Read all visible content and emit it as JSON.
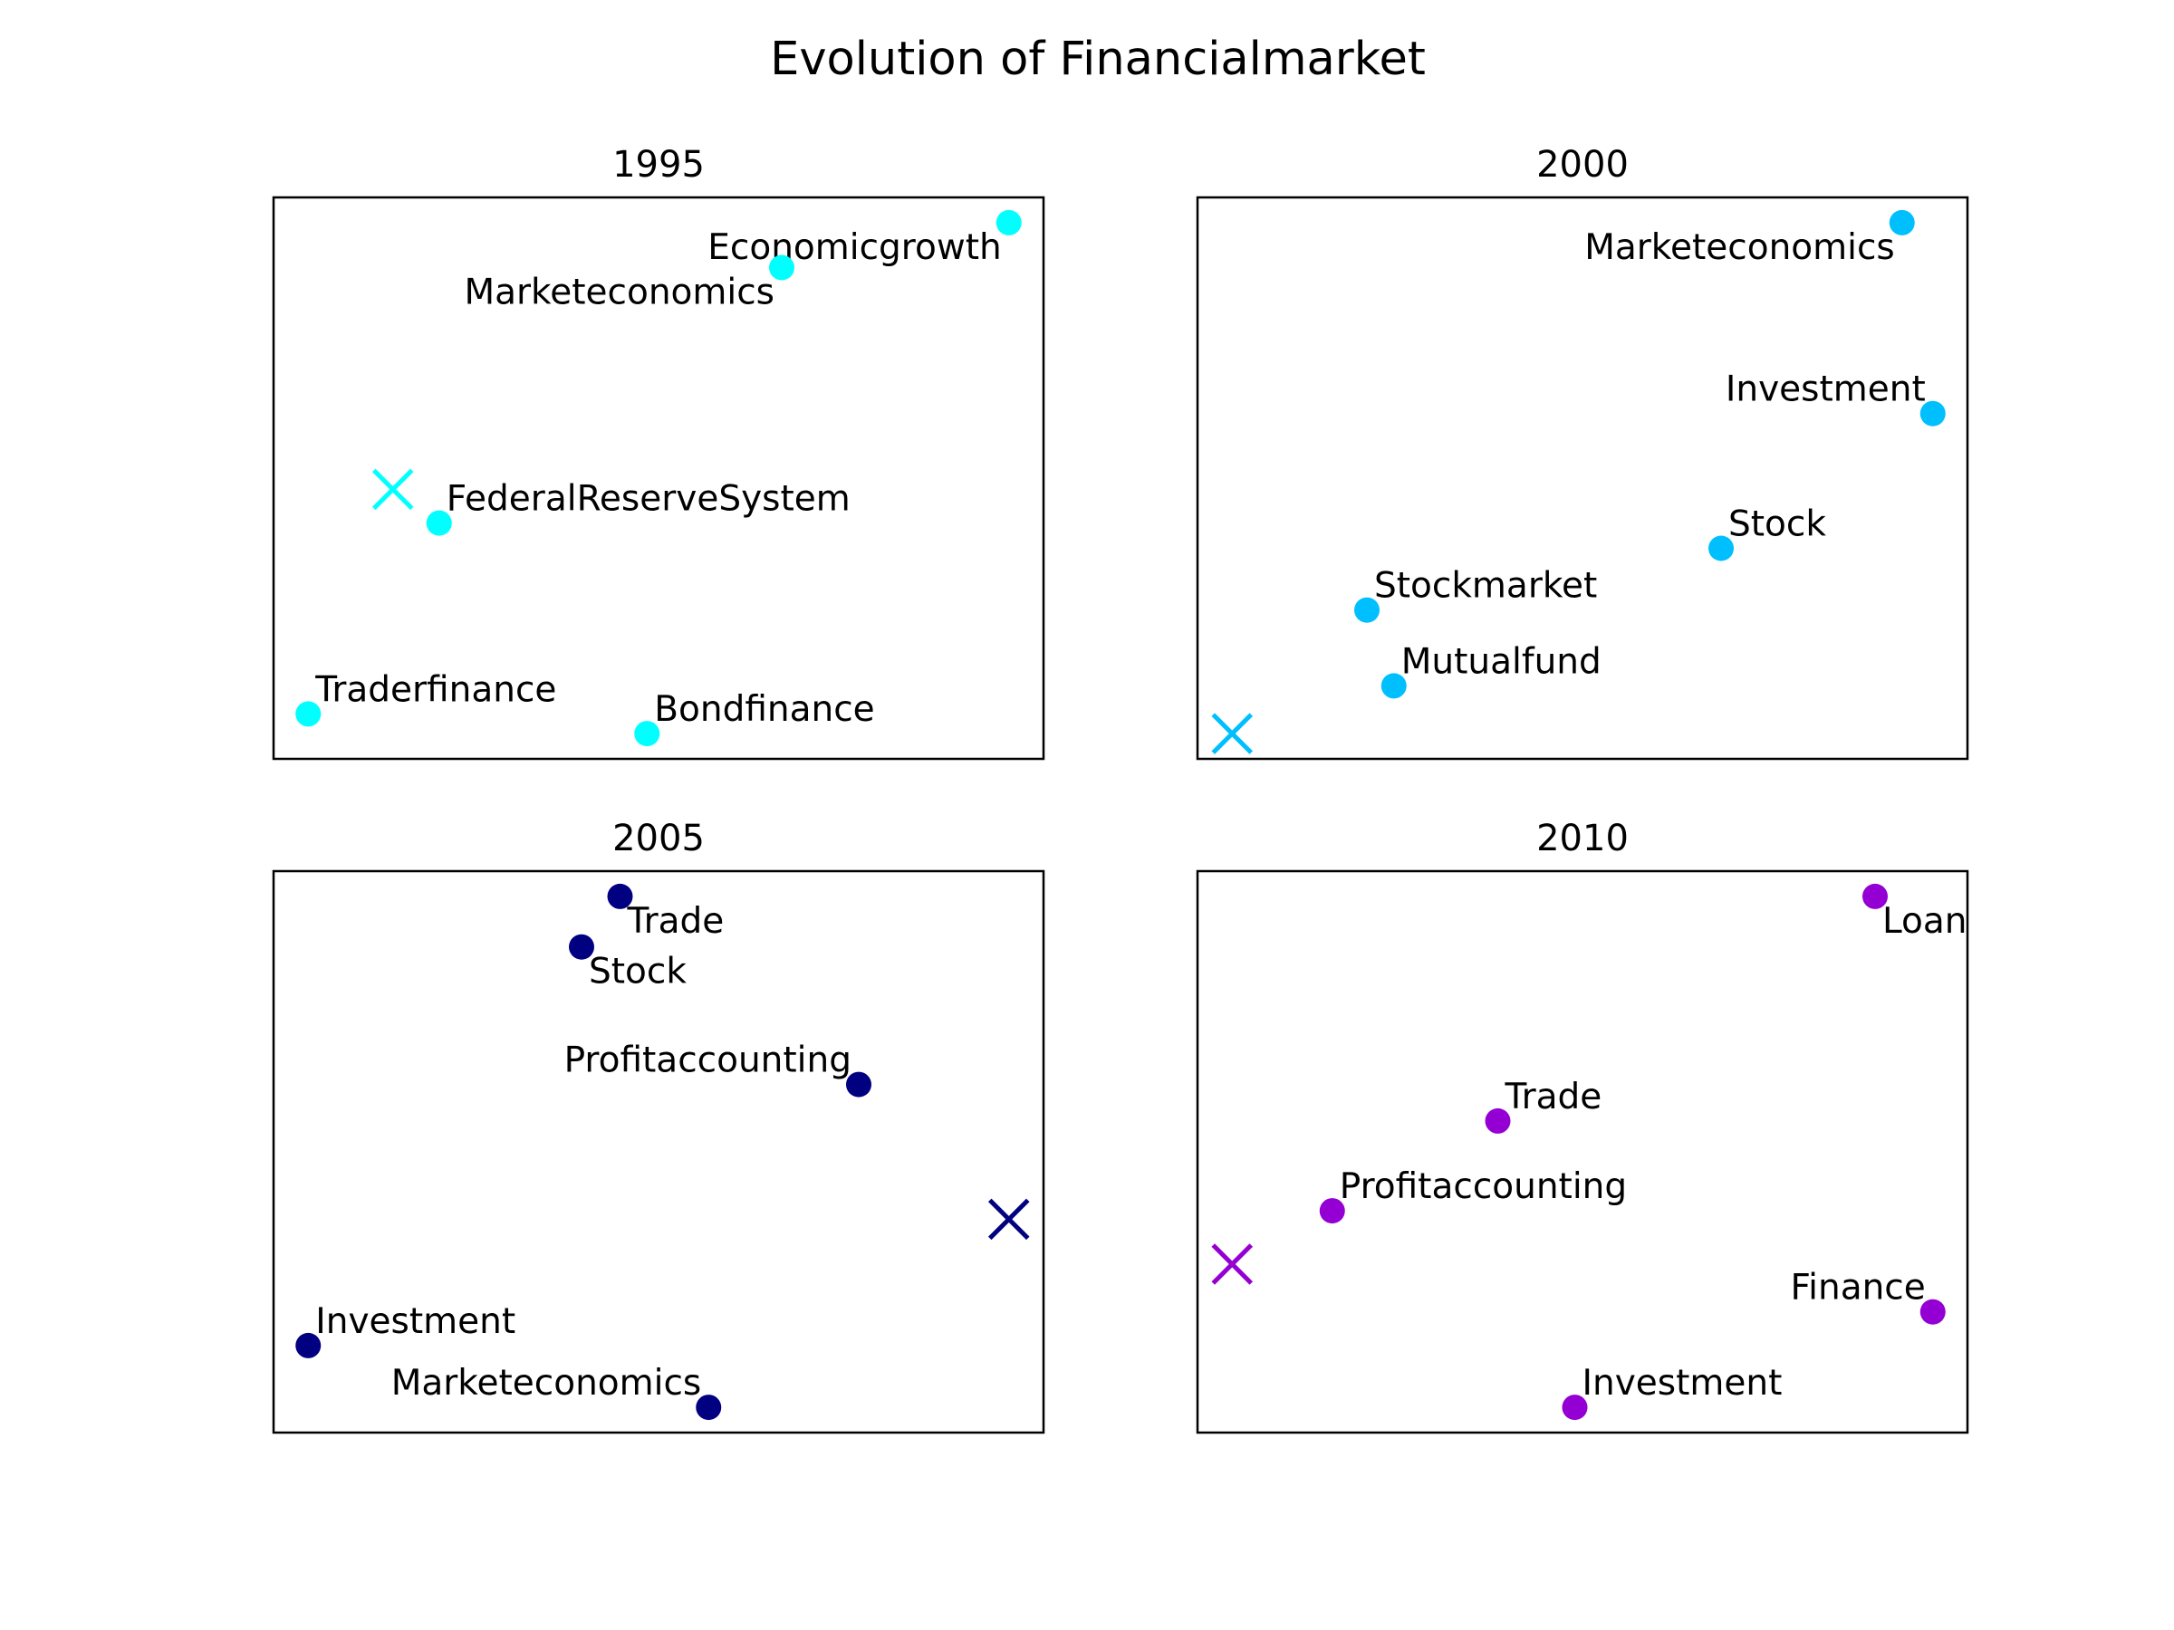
{
  "chart_data": {
    "type": "scatter",
    "title": "Evolution of Financialmarket",
    "panels": [
      {
        "year": "1995",
        "color": "#00ffff",
        "x_marker": {
          "x": 0.155,
          "y": 0.48
        },
        "points": [
          {
            "label": "Economicgrowth",
            "x": 0.955,
            "y": 0.955,
            "anchor": "end",
            "dy": 1
          },
          {
            "label": "Marketeconomics",
            "x": 0.66,
            "y": 0.875,
            "anchor": "end",
            "dy": 1
          },
          {
            "label": "FederalReserveSystem",
            "x": 0.215,
            "y": 0.42,
            "anchor": "start",
            "dy": -1
          },
          {
            "label": "Traderfinance",
            "x": 0.045,
            "y": 0.08,
            "anchor": "start",
            "dy": -1
          },
          {
            "label": "Bondfinance",
            "x": 0.485,
            "y": 0.045,
            "anchor": "start",
            "dy": -1
          }
        ]
      },
      {
        "year": "2000",
        "color": "#00bfff",
        "x_marker": {
          "x": 0.045,
          "y": 0.045
        },
        "points": [
          {
            "label": "Marketeconomics",
            "x": 0.915,
            "y": 0.955,
            "anchor": "end",
            "dy": 1
          },
          {
            "label": "Investment",
            "x": 0.955,
            "y": 0.615,
            "anchor": "end",
            "dy": -1
          },
          {
            "label": "Stock",
            "x": 0.68,
            "y": 0.375,
            "anchor": "start",
            "dy": -1
          },
          {
            "label": "Stockmarket",
            "x": 0.22,
            "y": 0.265,
            "anchor": "start",
            "dy": -1
          },
          {
            "label": "Mutualfund",
            "x": 0.255,
            "y": 0.13,
            "anchor": "start",
            "dy": -1
          }
        ]
      },
      {
        "year": "2005",
        "color": "#000080",
        "x_marker": {
          "x": 0.955,
          "y": 0.38
        },
        "points": [
          {
            "label": "Trade",
            "x": 0.45,
            "y": 0.955,
            "anchor": "start",
            "dy": 1
          },
          {
            "label": "Stock",
            "x": 0.4,
            "y": 0.865,
            "anchor": "start",
            "dy": 1
          },
          {
            "label": "Profitaccounting",
            "x": 0.76,
            "y": 0.62,
            "anchor": "end",
            "dy": -1
          },
          {
            "label": "Investment",
            "x": 0.045,
            "y": 0.155,
            "anchor": "start",
            "dy": -1
          },
          {
            "label": "Marketeconomics",
            "x": 0.565,
            "y": 0.045,
            "anchor": "end",
            "dy": -1
          }
        ]
      },
      {
        "year": "2010",
        "color": "#9400d3",
        "x_marker": {
          "x": 0.045,
          "y": 0.3
        },
        "points": [
          {
            "label": "Loan",
            "x": 0.88,
            "y": 0.955,
            "anchor": "start",
            "dy": 1
          },
          {
            "label": "Trade",
            "x": 0.39,
            "y": 0.555,
            "anchor": "start",
            "dy": -1
          },
          {
            "label": "Profitaccounting",
            "x": 0.175,
            "y": 0.395,
            "anchor": "start",
            "dy": -1
          },
          {
            "label": "Finance",
            "x": 0.955,
            "y": 0.215,
            "anchor": "end",
            "dy": -1
          },
          {
            "label": "Investment",
            "x": 0.49,
            "y": 0.045,
            "anchor": "start",
            "dy": -1
          }
        ]
      }
    ]
  }
}
